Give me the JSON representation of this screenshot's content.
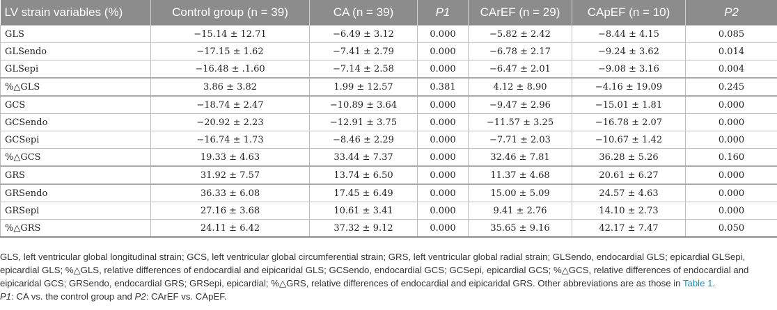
{
  "table": {
    "headers": {
      "variable": "LV strain variables (%)",
      "control": "Control group (n = 39)",
      "ca": "CA (n = 39)",
      "p1": "P1",
      "carEF": "CArEF (n = 29)",
      "capEF": "CApEF (n = 10)",
      "p2": "P2"
    },
    "rows": [
      {
        "label": "GLS",
        "control": "−15.14 ± 12.71",
        "ca": "−6.49 ± 3.12",
        "p1": "0.000",
        "carEF": "−5.82 ± 2.42",
        "capEF": "−8.44 ± 4.15",
        "p2": "0.085"
      },
      {
        "label": "GLSendo",
        "control": "−17.15 ± 1.62",
        "ca": "−7.41 ± 2.79",
        "p1": "0.000",
        "carEF": "−6.78 ± 2.17",
        "capEF": "−9.24 ± 3.62",
        "p2": "0.014"
      },
      {
        "label": "GLSepi",
        "control": "−16.48 ± .1.60",
        "ca": "−7.14 ± 2.58",
        "p1": "0.000",
        "carEF": "−6.47 ± 2.01",
        "capEF": "−9.08 ± 3.16",
        "p2": "0.004"
      },
      {
        "label": "%△GLS",
        "control": "3.86 ± 3.82",
        "ca": "1.99 ± 12.57",
        "p1": "0.381",
        "carEF": "4.12 ± 8.90",
        "capEF": "−4.16 ± 19.09",
        "p2": "0.245"
      },
      {
        "label": "GCS",
        "control": "−18.74 ± 2.47",
        "ca": "−10.89 ± 3.64",
        "p1": "0.000",
        "carEF": "−9.47 ± 2.96",
        "capEF": "−15.01 ± 1.81",
        "p2": "0.000"
      },
      {
        "label": "GCSendo",
        "control": "−20.92 ± 2.23",
        "ca": "−12.91 ± 3.75",
        "p1": "0.000",
        "carEF": "−11.57 ± 3.25",
        "capEF": "−16.78 ± 2.07",
        "p2": "0.000"
      },
      {
        "label": "GCSepi",
        "control": "−16.74 ± 1.73",
        "ca": "−8.46 ± 2.29",
        "p1": "0.000",
        "carEF": "−7.71 ± 2.03",
        "capEF": "−10.67 ± 1.42",
        "p2": "0.000"
      },
      {
        "label": "%△GCS",
        "control": "19.33 ± 4.63",
        "ca": "33.44 ± 7.37",
        "p1": "0.000",
        "carEF": "32.46 ± 7.81",
        "capEF": "36.28 ± 5.26",
        "p2": "0.160"
      },
      {
        "label": "GRS",
        "control": "31.92 ± 7.57",
        "ca": "13.74 ± 6.50",
        "p1": "0.000",
        "carEF": "11.37 ± 4.68",
        "capEF": "20.61 ± 6.27",
        "p2": "0.000"
      },
      {
        "label": "GRSendo",
        "control": "36.33 ± 6.08",
        "ca": "17.45 ± 6.49",
        "p1": "0.000",
        "carEF": "15.00 ± 5.09",
        "capEF": "24.57 ± 4.63",
        "p2": "0.000"
      },
      {
        "label": "GRSepi",
        "control": "27.16 ± 3.68",
        "ca": "10.61 ± 3.41",
        "p1": "0.000",
        "carEF": "9.41 ± 2.76",
        "capEF": "14.10 ± 2.73",
        "p2": "0.000"
      },
      {
        "label": "%△GRS",
        "control": "24.11 ± 6.42",
        "ca": "37.32 ± 9.12",
        "p1": "0.000",
        "carEF": "35.65 ± 9.16",
        "capEF": "42.17 ± 7.47",
        "p2": "0.050"
      }
    ]
  },
  "footnote": {
    "abbreviations": "GLS, left ventricular global longitudinal strain; GCS, left ventricular global circumferential strain; GRS, left ventricular global radial strain; GLSendo, endocardial GLS; epicardial GLSepi, epicardial GLS; %△GLS, relative differences of endocardial and eipicaridal GLS; GCSendo, endocardial GCS; GCSepi, epicardial GCS; %△GCS, relative differences of endocardial and eipicaridal GCS; GRSendo, endocardial GRS; GRSepi, epicardial; %△GRS, relative differences of endocardial and eipicaridal GRS. Other abbreviations are as those in",
    "link": "Table 1",
    "end": ".",
    "p1_label": "P1",
    "p1_text": ": CA vs. the control group and ",
    "p2_label": "P2",
    "p2_text": ": CArEF vs. CApEF."
  },
  "colors": {
    "header_bg": "#8c8c8c",
    "link": "#1a8fb5"
  }
}
